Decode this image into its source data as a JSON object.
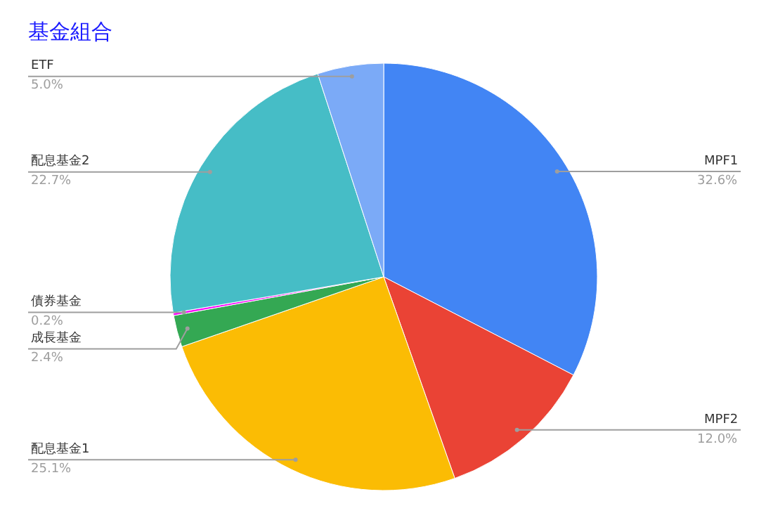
{
  "chart_data": {
    "type": "pie",
    "title": "基金組合",
    "categories": [
      "MPF1",
      "MPF2",
      "配息基金1",
      "成長基金",
      "債券基金",
      "配息基金2",
      "ETF"
    ],
    "values": [
      32.6,
      12.0,
      25.1,
      2.4,
      0.2,
      22.7,
      5.0
    ],
    "value_labels": [
      "32.6%",
      "12.0%",
      "25.1%",
      "2.4%",
      "0.2%",
      "22.7%",
      "5.0%"
    ],
    "colors": [
      "#4285f4",
      "#ea4335",
      "#fbbc04",
      "#34a853",
      "#ff00ff",
      "#46bdc6",
      "#7baaf7"
    ],
    "legend": false
  }
}
